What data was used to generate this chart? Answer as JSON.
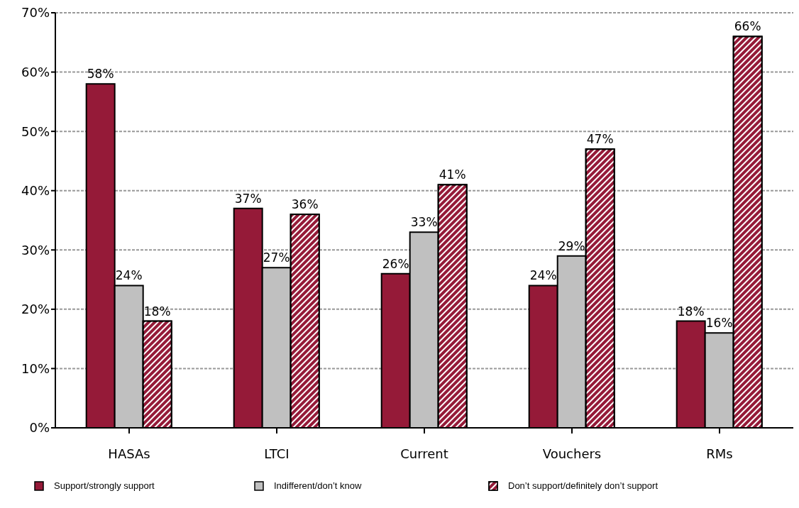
{
  "chart_data": {
    "type": "bar",
    "categories": [
      "HASAs",
      "LTCI",
      "Current",
      "Vouchers",
      "RMs"
    ],
    "series": [
      {
        "name": "Support/strongly support",
        "color": "#951a38",
        "values": [
          58,
          37,
          26,
          24,
          18
        ],
        "value_labels": [
          "58%",
          "37%",
          "26%",
          "24%",
          "18%"
        ]
      },
      {
        "name": "Indifferent/don’t know",
        "color": "#c0c0c0",
        "values": [
          24,
          27,
          33,
          29,
          16
        ],
        "value_labels": [
          "24%",
          "27%",
          "33%",
          "29%",
          "16%"
        ]
      },
      {
        "name": "Don’t support/definitely don’t support",
        "color": "#951a38",
        "values": [
          18,
          36,
          41,
          47,
          66
        ],
        "value_labels": [
          "18%",
          "36%",
          "41%",
          "47%",
          "66%"
        ]
      }
    ],
    "ylim": [
      0,
      70
    ],
    "yticks": [
      {
        "value": 0,
        "label": "0%"
      },
      {
        "value": 10,
        "label": "10%"
      },
      {
        "value": 20,
        "label": "20%"
      },
      {
        "value": 30,
        "label": "30%"
      },
      {
        "value": 40,
        "label": "40%"
      },
      {
        "value": 50,
        "label": "50%"
      },
      {
        "value": 60,
        "label": "60%"
      },
      {
        "value": 70,
        "label": "70%"
      }
    ],
    "grid": "y",
    "legend": "bottom"
  }
}
